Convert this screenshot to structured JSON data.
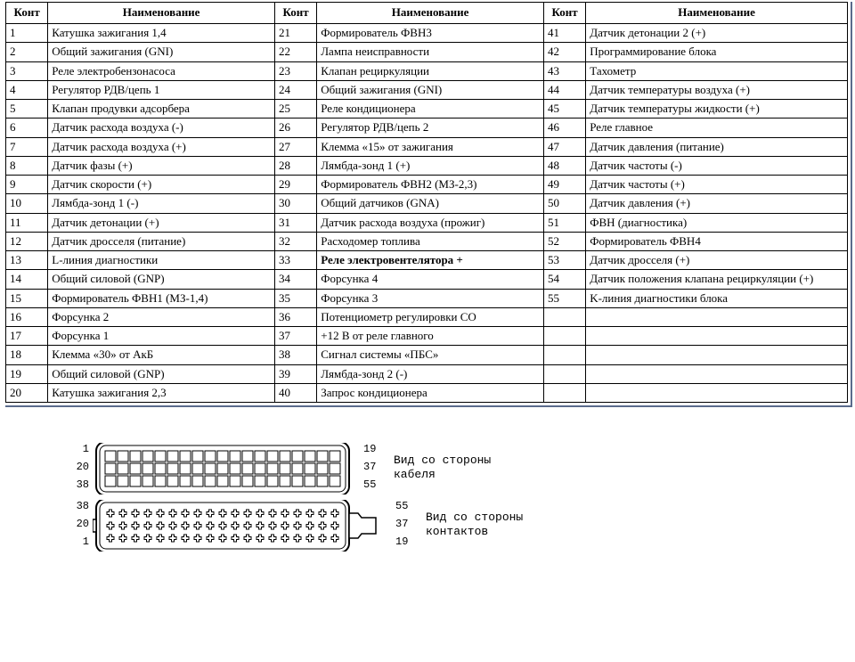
{
  "table": {
    "headers": {
      "pin": "Конт",
      "name": "Наименование"
    },
    "col1": [
      {
        "n": "1",
        "t": "Катушка зажигания 1,4"
      },
      {
        "n": "2",
        "t": "Общий зажигания (GNI)"
      },
      {
        "n": "3",
        "t": "Реле электробензонасоса"
      },
      {
        "n": "4",
        "t": "Регулятор РДВ/цепь 1"
      },
      {
        "n": "5",
        "t": "Клапан продувки адсорбера"
      },
      {
        "n": "6",
        "t": "Датчик расхода воздуха (-)"
      },
      {
        "n": "7",
        "t": "Датчик расхода воздуха (+)"
      },
      {
        "n": "8",
        "t": "Датчик фазы (+)"
      },
      {
        "n": "9",
        "t": "Датчик скорости (+)"
      },
      {
        "n": "10",
        "t": "Лямбда-зонд 1 (-)"
      },
      {
        "n": "11",
        "t": "Датчик детонации (+)"
      },
      {
        "n": "12",
        "t": "Датчик дросселя (питание)"
      },
      {
        "n": "13",
        "t": "L-линия диагностики"
      },
      {
        "n": "14",
        "t": "Общий силовой (GNP)"
      },
      {
        "n": "15",
        "t": "Формирователь ФВН1 (МЗ-1,4)"
      },
      {
        "n": "16",
        "t": "Форсунка 2"
      },
      {
        "n": "17",
        "t": "Форсунка 1"
      },
      {
        "n": "18",
        "t": "Клемма «30» от АкБ"
      },
      {
        "n": "19",
        "t": "Общий силовой (GNP)"
      },
      {
        "n": "20",
        "t": "Катушка зажигания 2,3"
      }
    ],
    "col2": [
      {
        "n": "21",
        "t": "Формирователь ФВН3"
      },
      {
        "n": "22",
        "t": "Лампа неисправности"
      },
      {
        "n": "23",
        "t": "Клапан рециркуляции"
      },
      {
        "n": "24",
        "t": "Общий зажигания (GNI)"
      },
      {
        "n": "25",
        "t": "Реле кондиционера"
      },
      {
        "n": "26",
        "t": "Регулятор РДВ/цепь 2"
      },
      {
        "n": "27",
        "t": "Клемма «15» от зажигания"
      },
      {
        "n": "28",
        "t": "Лямбда-зонд 1 (+)"
      },
      {
        "n": "29",
        "t": "Формирователь ФВН2 (МЗ-2,3)"
      },
      {
        "n": "30",
        "t": "Общий датчиков (GNA)"
      },
      {
        "n": "31",
        "t": "Датчик расхода воздуха (прожиг)"
      },
      {
        "n": "32",
        "t": "Расходомер топлива"
      },
      {
        "n": "33",
        "t": "Реле электровентелятора +",
        "bold": true
      },
      {
        "n": "34",
        "t": "Форсунка 4"
      },
      {
        "n": "35",
        "t": "Форсунка 3"
      },
      {
        "n": "36",
        "t": "Потенциометр регулировки СО"
      },
      {
        "n": "37",
        "t": "+12 В от реле главного"
      },
      {
        "n": "38",
        "t": "Сигнал системы «ПБС»"
      },
      {
        "n": "39",
        "t": "Лямбда-зонд 2 (-)"
      },
      {
        "n": "40",
        "t": "Запрос кондиционера"
      }
    ],
    "col3": [
      {
        "n": "41",
        "t": "Датчик детонации 2 (+)"
      },
      {
        "n": "42",
        "t": "Программирование блока"
      },
      {
        "n": "43",
        "t": "Тахометр"
      },
      {
        "n": "44",
        "t": "Датчик температуры воздуха (+)"
      },
      {
        "n": "45",
        "t": "Датчик температуры жидкости (+)"
      },
      {
        "n": "46",
        "t": "Реле главное"
      },
      {
        "n": "47",
        "t": "Датчик давления (питание)"
      },
      {
        "n": "48",
        "t": "Датчик частоты (-)"
      },
      {
        "n": "49",
        "t": "Датчик частоты (+)"
      },
      {
        "n": "50",
        "t": "Датчик давления (+)"
      },
      {
        "n": "51",
        "t": "ФВН (диагностика)"
      },
      {
        "n": "52",
        "t": "Формирователь ФВН4"
      },
      {
        "n": "53",
        "t": "Датчик дросселя (+)"
      },
      {
        "n": "54",
        "t": "Датчик положения клапана рециркуляции (+)"
      },
      {
        "n": "55",
        "t": "K-линия диагностики блока"
      },
      {
        "n": "",
        "t": ""
      },
      {
        "n": "",
        "t": ""
      },
      {
        "n": "",
        "t": ""
      },
      {
        "n": "",
        "t": ""
      },
      {
        "n": "",
        "t": ""
      }
    ]
  },
  "connector": {
    "cols": 19,
    "rows": 3,
    "view1": {
      "left_pins": [
        "1",
        "20",
        "38"
      ],
      "right_pins": [
        "19",
        "37",
        "55"
      ],
      "caption_l1": "Вид со стороны",
      "caption_l2": "кабеля"
    },
    "view2": {
      "left_pins": [
        "38",
        "20",
        "1"
      ],
      "right_pins": [
        "55",
        "37",
        "19"
      ],
      "caption_l1": "Вид сo стороны",
      "caption_l2": "контактов"
    },
    "colors": {
      "outline": "#000000",
      "fill": "#ffffff"
    }
  }
}
